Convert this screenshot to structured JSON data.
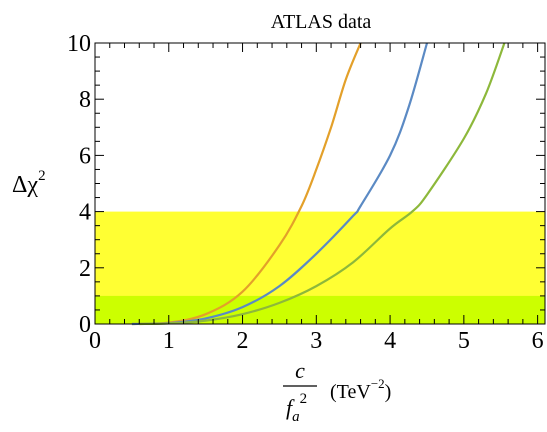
{
  "chart_data": {
    "type": "line",
    "title": "ATLAS data",
    "ylabel": {
      "base": "Δχ",
      "sup": "2"
    },
    "xlabel": {
      "numerator": "c",
      "denominator": "f",
      "denominator_sub": "a",
      "denominator_sup": "2",
      "unit_open": "(TeV",
      "unit_sup": "−2",
      "unit_close": ")"
    },
    "xlim": [
      0,
      6.1
    ],
    "ylim": [
      0,
      10
    ],
    "x_ticks": [
      0,
      1,
      2,
      3,
      4,
      5,
      6
    ],
    "x_tick_labels": [
      "0",
      "1",
      "2",
      "3",
      "4",
      "5",
      "6"
    ],
    "y_ticks": [
      0,
      2,
      4,
      6,
      8,
      10
    ],
    "y_tick_labels": [
      "0",
      "2",
      "4",
      "6",
      "8",
      "10"
    ],
    "bands": [
      {
        "y0": 0,
        "y1": 4,
        "color": "#ffff33"
      },
      {
        "y0": 0,
        "y1": 1,
        "color": "#ccff00"
      }
    ],
    "series": [
      {
        "color": "#e3a02a",
        "x": [
          0.5,
          1.0,
          1.5,
          2.0,
          2.5,
          2.8,
          3.0,
          3.2,
          3.4,
          3.6
        ],
        "y": [
          0.0,
          0.05,
          0.35,
          1.15,
          2.8,
          4.2,
          5.5,
          7.0,
          8.7,
          10.0
        ]
      },
      {
        "color": "#5b8ac4",
        "x": [
          0.5,
          1.0,
          1.5,
          2.0,
          2.5,
          3.0,
          3.5,
          3.6,
          4.0,
          4.25,
          4.5
        ],
        "y": [
          0.0,
          0.03,
          0.2,
          0.6,
          1.35,
          2.5,
          3.85,
          4.2,
          6.0,
          7.7,
          10.0
        ]
      },
      {
        "color": "#8db83b",
        "x": [
          0.6,
          1.0,
          1.5,
          2.0,
          2.5,
          3.0,
          3.5,
          4.0,
          4.3,
          4.5,
          5.0,
          5.3,
          5.55
        ],
        "y": [
          0.0,
          0.02,
          0.12,
          0.35,
          0.75,
          1.35,
          2.2,
          3.4,
          4.0,
          4.6,
          6.6,
          8.2,
          10.0
        ]
      }
    ]
  }
}
